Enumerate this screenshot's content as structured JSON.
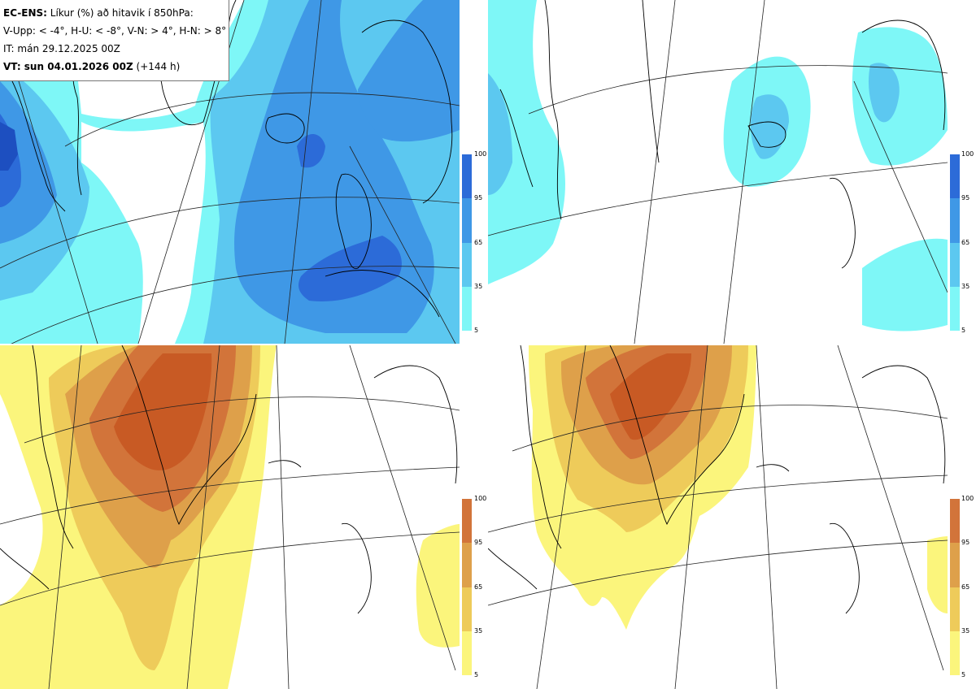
{
  "header": {
    "line1_bold": "EC-ENS:",
    "line1_rest": " Líkur (%) að hitavik í 850hPa:",
    "line2": "V-Upp: < -4°, H-U: < -8°, V-N: > 4°, H-N: > 8°",
    "line3": "IT: mán 29.12.2025 00Z",
    "line4_bold": "VT: sun 04.01.2026 00Z",
    "line4_rest": " (+144 h)"
  },
  "colors": {
    "cold": [
      "#7ef7f7",
      "#5cc8f0",
      "#3f98e6",
      "#2c6bd8",
      "#1d4fc0"
    ],
    "warm": [
      "#fbf57c",
      "#eecb5a",
      "#dea04a",
      "#d2743a",
      "#c85a24"
    ],
    "coast": "#000000",
    "grid": "#222222"
  },
  "colorbar": {
    "ticks": [
      "100",
      "95",
      "65",
      "35",
      "5"
    ]
  },
  "panels": [
    {
      "id": "cold-4",
      "scheme": "cold"
    },
    {
      "id": "cold-8",
      "scheme": "cold"
    },
    {
      "id": "warm-4",
      "scheme": "warm"
    },
    {
      "id": "warm-8",
      "scheme": "warm"
    }
  ]
}
